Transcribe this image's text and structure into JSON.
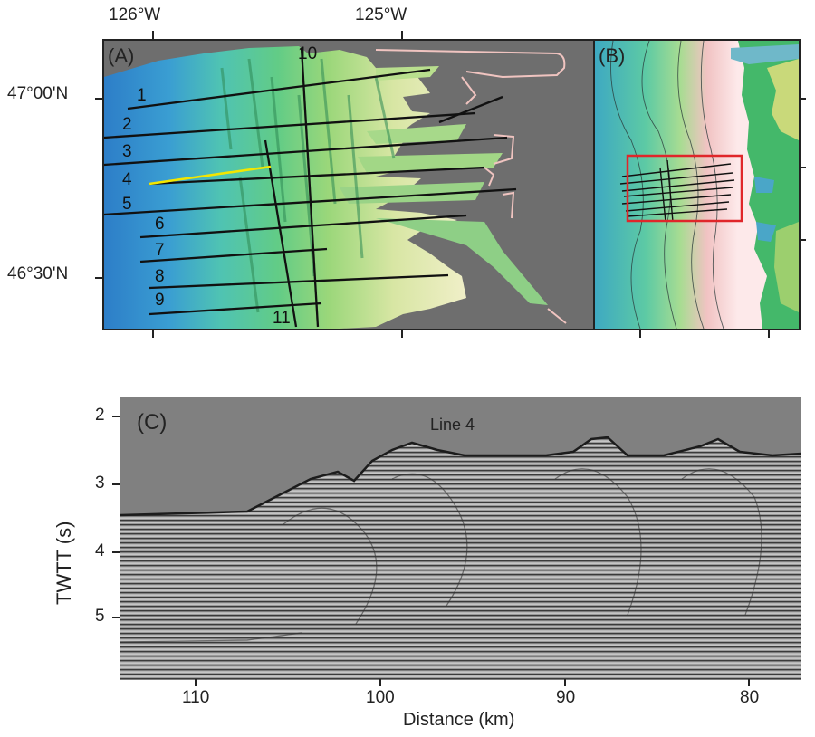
{
  "panel_a": {
    "label": "(A)",
    "lon_ticks": [
      "126°W",
      "125°W"
    ],
    "lat_ticks": [
      "47°00'N",
      "46°30'N"
    ],
    "survey_lines": [
      "1",
      "2",
      "3",
      "4",
      "5",
      "6",
      "7",
      "8",
      "9",
      "10",
      "11"
    ],
    "highlighted_line": "4",
    "highlight_color": "#f3e600"
  },
  "panel_b": {
    "label": "(B)",
    "box_color": "#e0262a"
  },
  "panel_c": {
    "label": "(C)",
    "title": "Line 4",
    "ylabel": "TWTT (s)",
    "xlabel": "Distance (km)",
    "y_ticks": [
      "2",
      "3",
      "4",
      "5"
    ],
    "x_ticks": [
      "110",
      "100",
      "90",
      "80"
    ]
  },
  "colors": {
    "water_gray": "#6f6f6f",
    "deep": "#2f7fc9",
    "mid": "#58c98a",
    "shallow": "#d4e5a0",
    "land_pink": "#f1c6c6"
  }
}
